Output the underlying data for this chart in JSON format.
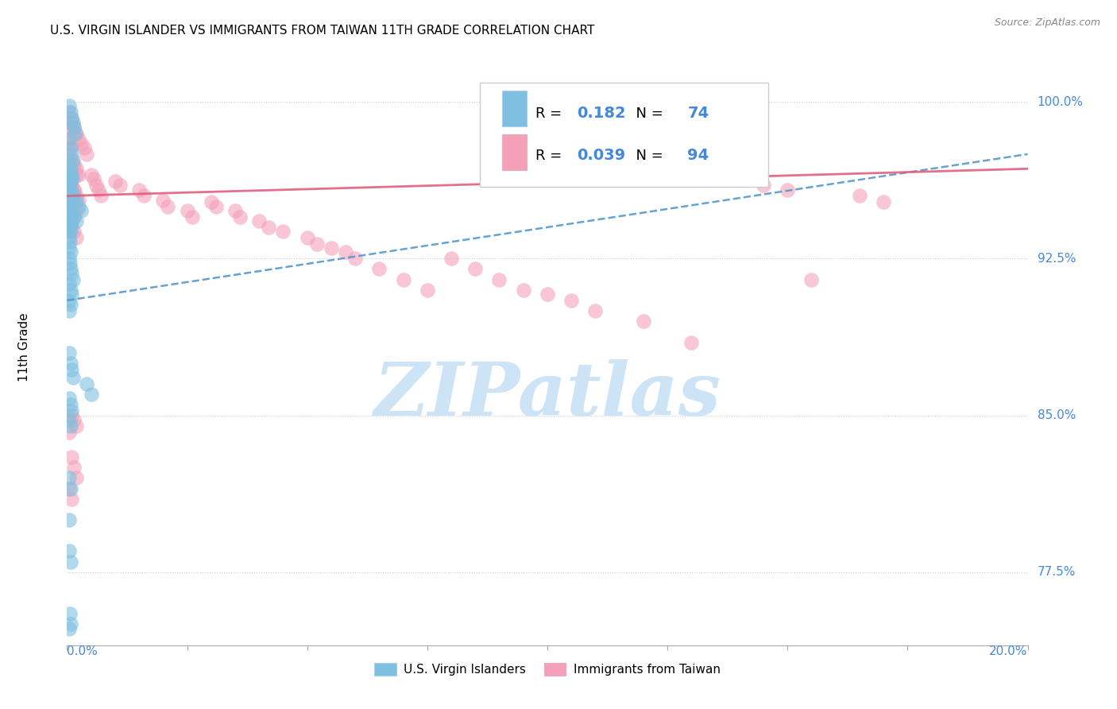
{
  "title": "U.S. VIRGIN ISLANDER VS IMMIGRANTS FROM TAIWAN 11TH GRADE CORRELATION CHART",
  "source": "Source: ZipAtlas.com",
  "ylabel": "11th Grade",
  "yticks": [
    77.5,
    85.0,
    92.5,
    100.0
  ],
  "xlim": [
    0.0,
    20.0
  ],
  "ylim": [
    74.0,
    102.5
  ],
  "legend_r_blue": "0.182",
  "legend_n_blue": "74",
  "legend_r_pink": "0.039",
  "legend_n_pink": "94",
  "blue_scatter_x": [
    0.05,
    0.08,
    0.1,
    0.12,
    0.15,
    0.18,
    0.05,
    0.08,
    0.1,
    0.12,
    0.05,
    0.07,
    0.09,
    0.11,
    0.05,
    0.07,
    0.09,
    0.05,
    0.07,
    0.05,
    0.06,
    0.08,
    0.1,
    0.05,
    0.07,
    0.05,
    0.06,
    0.05,
    0.07,
    0.05,
    0.06,
    0.08,
    0.1,
    0.12,
    0.05,
    0.07,
    0.09,
    0.05,
    0.07,
    0.05,
    0.15,
    0.2,
    0.25,
    0.3,
    0.15,
    0.2,
    0.05,
    0.08,
    0.1,
    0.12,
    0.4,
    0.5,
    0.05,
    0.07,
    0.09,
    0.05,
    0.07,
    0.05,
    0.07,
    0.05,
    0.05,
    0.07,
    0.06,
    0.08,
    0.05,
    0.07,
    0.08,
    0.05,
    0.07,
    0.05,
    0.06,
    0.05,
    0.07,
    0.05
  ],
  "blue_scatter_y": [
    99.8,
    99.5,
    99.2,
    99.0,
    98.8,
    98.5,
    98.2,
    97.8,
    97.5,
    97.2,
    97.0,
    96.8,
    96.5,
    96.3,
    96.0,
    95.8,
    95.5,
    95.3,
    95.1,
    94.9,
    94.7,
    94.5,
    94.3,
    94.0,
    93.8,
    93.5,
    93.3,
    93.0,
    92.8,
    92.5,
    92.3,
    92.0,
    91.8,
    91.5,
    91.3,
    91.0,
    90.8,
    90.5,
    90.3,
    90.0,
    95.5,
    95.3,
    95.0,
    94.8,
    94.5,
    94.3,
    88.0,
    87.5,
    87.2,
    86.8,
    86.5,
    86.0,
    85.8,
    85.5,
    85.2,
    84.8,
    84.5,
    82.0,
    81.5,
    80.0,
    78.5,
    78.0,
    75.5,
    75.0,
    74.8,
    96.5,
    96.2,
    95.8,
    95.5,
    95.2,
    94.8,
    94.5,
    94.2,
    93.8
  ],
  "pink_scatter_x": [
    0.05,
    0.1,
    0.15,
    0.2,
    0.25,
    0.3,
    0.35,
    0.4,
    0.05,
    0.1,
    0.15,
    0.2,
    0.05,
    0.1,
    0.15,
    0.2,
    0.25,
    0.05,
    0.1,
    0.15,
    0.05,
    0.1,
    0.15,
    0.2,
    0.05,
    0.1,
    0.15,
    0.05,
    0.1,
    0.05,
    0.05,
    0.1,
    0.15,
    0.2,
    0.25,
    0.05,
    0.1,
    0.15,
    0.05,
    0.1,
    0.15,
    0.2,
    0.5,
    0.55,
    0.6,
    0.65,
    0.7,
    1.0,
    1.1,
    1.5,
    1.6,
    2.0,
    2.1,
    2.5,
    2.6,
    3.0,
    3.1,
    3.5,
    3.6,
    4.0,
    4.2,
    4.5,
    5.0,
    5.2,
    5.5,
    5.8,
    6.0,
    6.5,
    7.0,
    7.5,
    8.0,
    8.5,
    9.0,
    9.5,
    10.0,
    10.5,
    11.0,
    12.0,
    13.0,
    14.5,
    15.0,
    15.5,
    16.5,
    17.0,
    0.05,
    0.1,
    0.15,
    0.2,
    0.05,
    0.1,
    0.15,
    0.2,
    0.05,
    0.1
  ],
  "pink_scatter_y": [
    99.5,
    99.2,
    98.8,
    98.5,
    98.2,
    98.0,
    97.8,
    97.5,
    97.2,
    97.0,
    96.8,
    96.5,
    96.3,
    96.0,
    95.8,
    95.5,
    95.3,
    95.0,
    94.8,
    94.5,
    94.3,
    94.0,
    93.8,
    93.5,
    99.0,
    98.8,
    98.5,
    98.2,
    98.0,
    97.8,
    97.5,
    97.2,
    97.0,
    96.8,
    96.5,
    96.3,
    96.0,
    95.8,
    95.5,
    95.3,
    95.0,
    94.8,
    96.5,
    96.3,
    96.0,
    95.8,
    95.5,
    96.2,
    96.0,
    95.8,
    95.5,
    95.3,
    95.0,
    94.8,
    94.5,
    95.2,
    95.0,
    94.8,
    94.5,
    94.3,
    94.0,
    93.8,
    93.5,
    93.2,
    93.0,
    92.8,
    92.5,
    92.0,
    91.5,
    91.0,
    92.5,
    92.0,
    91.5,
    91.0,
    90.8,
    90.5,
    90.0,
    89.5,
    88.5,
    96.0,
    95.8,
    91.5,
    95.5,
    95.2,
    94.8,
    85.0,
    84.8,
    84.5,
    84.2,
    83.0,
    82.5,
    82.0,
    81.5,
    81.0
  ],
  "blue_line_x0": 0.0,
  "blue_line_x1": 20.0,
  "blue_line_y0": 90.5,
  "blue_line_y1": 97.5,
  "pink_line_x0": 0.0,
  "pink_line_x1": 20.0,
  "pink_line_y0": 95.5,
  "pink_line_y1": 96.8,
  "blue_color": "#7fbfdf",
  "pink_color": "#f4a0b8",
  "blue_line_color": "#5599cc",
  "pink_line_color": "#e06080",
  "grid_color": "#cccccc",
  "watermark_color": "#cce4f5",
  "right_label_color": "#4488dd",
  "bottom_label_color": "#4488dd"
}
